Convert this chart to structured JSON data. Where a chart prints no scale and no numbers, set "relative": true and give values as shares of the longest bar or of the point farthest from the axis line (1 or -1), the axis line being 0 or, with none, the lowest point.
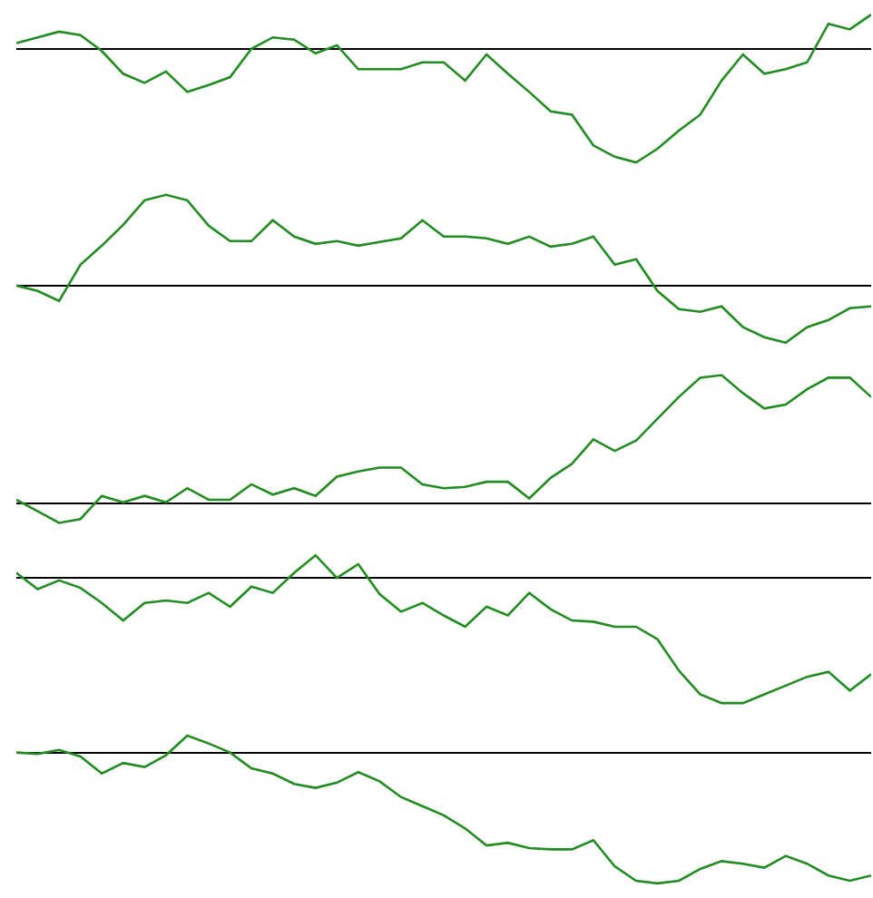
{
  "chart_data": [
    {
      "type": "line",
      "relative": true,
      "categories": [
        null,
        null,
        null,
        null,
        null,
        null,
        null,
        null,
        null,
        null,
        null,
        null,
        null,
        null,
        null,
        null,
        null,
        null,
        null,
        null,
        null,
        null,
        null,
        null,
        null,
        null,
        null,
        null,
        null,
        null,
        null,
        null,
        null,
        null,
        null,
        null,
        null,
        null,
        null,
        null,
        null
      ],
      "series": [
        {
          "color": "#228b22",
          "values": [
            0.05,
            0.1,
            0.15,
            0.12,
            -0.02,
            -0.22,
            -0.3,
            -0.2,
            -0.38,
            -0.32,
            -0.25,
            0,
            0.1,
            0.08,
            -0.04,
            0.03,
            -0.18,
            -0.18,
            -0.18,
            -0.12,
            -0.12,
            -0.28,
            -0.05,
            -0.22,
            -0.38,
            -0.55,
            -0.58,
            -0.85,
            -0.95,
            -1,
            -0.88,
            -0.72,
            -0.58,
            -0.28,
            -0.05,
            -0.22,
            -0.18,
            -0.12,
            0.22,
            0.17,
            0.3
          ]
        }
      ]
    },
    {
      "type": "line",
      "relative": true,
      "categories": [
        null,
        null,
        null,
        null,
        null,
        null,
        null,
        null,
        null,
        null,
        null,
        null,
        null,
        null,
        null,
        null,
        null,
        null,
        null,
        null,
        null,
        null,
        null,
        null,
        null,
        null,
        null,
        null,
        null,
        null,
        null,
        null,
        null,
        null,
        null,
        null,
        null,
        null,
        null,
        null,
        null
      ],
      "series": [
        {
          "color": "#228b22",
          "values": [
            0,
            -0.06,
            -0.17,
            0.23,
            0.44,
            0.67,
            0.94,
            1,
            0.94,
            0.66,
            0.49,
            0.49,
            0.72,
            0.54,
            0.46,
            0.49,
            0.44,
            0.48,
            0.52,
            0.72,
            0.54,
            0.54,
            0.52,
            0.46,
            0.54,
            0.43,
            0.46,
            0.54,
            0.23,
            0.29,
            -0.06,
            -0.26,
            -0.29,
            -0.23,
            -0.46,
            -0.57,
            -0.63,
            -0.46,
            -0.38,
            -0.25,
            -0.23
          ]
        }
      ]
    },
    {
      "type": "line",
      "relative": true,
      "categories": [
        null,
        null,
        null,
        null,
        null,
        null,
        null,
        null,
        null,
        null,
        null,
        null,
        null,
        null,
        null,
        null,
        null,
        null,
        null,
        null,
        null,
        null,
        null,
        null,
        null,
        null,
        null,
        null,
        null,
        null,
        null,
        null,
        null,
        null,
        null,
        null,
        null,
        null,
        null,
        null,
        null
      ],
      "series": [
        {
          "color": "#228b22",
          "values": [
            0.03,
            -0.06,
            -0.15,
            -0.12,
            0.06,
            0.01,
            0.06,
            0.01,
            0.12,
            0.03,
            0.03,
            0.15,
            0.07,
            0.12,
            0.06,
            0.21,
            0.25,
            0.28,
            0.28,
            0.15,
            0.12,
            0.13,
            0.17,
            0.17,
            0.04,
            0.2,
            0.31,
            0.5,
            0.41,
            0.49,
            0.66,
            0.83,
            0.98,
            1,
            0.86,
            0.74,
            0.77,
            0.89,
            0.98,
            0.98,
            0.83
          ]
        }
      ]
    },
    {
      "type": "line",
      "relative": true,
      "categories": [
        null,
        null,
        null,
        null,
        null,
        null,
        null,
        null,
        null,
        null,
        null,
        null,
        null,
        null,
        null,
        null,
        null,
        null,
        null,
        null,
        null,
        null,
        null,
        null,
        null,
        null,
        null,
        null,
        null,
        null,
        null,
        null,
        null,
        null,
        null,
        null,
        null,
        null,
        null,
        null,
        null
      ],
      "series": [
        {
          "color": "#228b22",
          "values": [
            0.04,
            -0.09,
            -0.02,
            -0.08,
            -0.2,
            -0.34,
            -0.2,
            -0.18,
            -0.2,
            -0.12,
            -0.23,
            -0.07,
            -0.12,
            0.04,
            0.18,
            0,
            0.11,
            -0.13,
            -0.27,
            -0.2,
            -0.3,
            -0.39,
            -0.23,
            -0.3,
            -0.12,
            -0.25,
            -0.34,
            -0.35,
            -0.39,
            -0.39,
            -0.49,
            -0.74,
            -0.93,
            -1,
            -1,
            -0.93,
            -0.86,
            -0.79,
            -0.75,
            -0.9,
            -0.77
          ]
        }
      ]
    },
    {
      "type": "line",
      "relative": true,
      "categories": [
        null,
        null,
        null,
        null,
        null,
        null,
        null,
        null,
        null,
        null,
        null,
        null,
        null,
        null,
        null,
        null,
        null,
        null,
        null,
        null,
        null,
        null,
        null,
        null,
        null,
        null,
        null,
        null,
        null,
        null,
        null,
        null,
        null,
        null,
        null,
        null,
        null,
        null,
        null,
        null,
        null
      ],
      "series": [
        {
          "color": "#228b22",
          "values": [
            0,
            -0.01,
            0.02,
            -0.03,
            -0.16,
            -0.08,
            -0.11,
            -0.02,
            0.13,
            0.07,
            0,
            -0.12,
            -0.16,
            -0.24,
            -0.27,
            -0.23,
            -0.15,
            -0.22,
            -0.34,
            -0.41,
            -0.48,
            -0.58,
            -0.71,
            -0.69,
            -0.73,
            -0.74,
            -0.74,
            -0.67,
            -0.87,
            -0.98,
            -1,
            -0.98,
            -0.89,
            -0.83,
            -0.85,
            -0.88,
            -0.79,
            -0.85,
            -0.94,
            -0.98,
            -0.94
          ]
        }
      ]
    }
  ]
}
